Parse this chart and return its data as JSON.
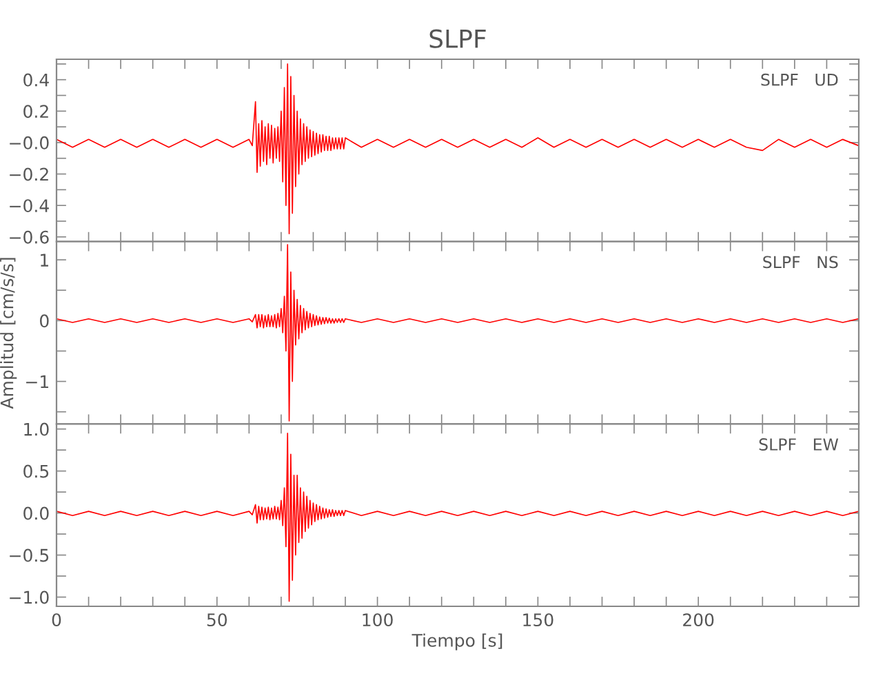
{
  "chart_data": [
    {
      "type": "line",
      "title": "SLPF",
      "annotations": [
        "SLPF   UD"
      ],
      "tick_labels": "y",
      "x": [
        0,
        5,
        10,
        15,
        20,
        25,
        30,
        35,
        40,
        45,
        50,
        55,
        60,
        61,
        62,
        62.5,
        63,
        63.5,
        64,
        64.5,
        65,
        65.5,
        66,
        66.5,
        67,
        67.5,
        68,
        68.5,
        69,
        69.5,
        70,
        70.5,
        71,
        71.5,
        72,
        72.5,
        73,
        73.5,
        74,
        74.5,
        75,
        75.5,
        76,
        76.5,
        77,
        77.5,
        78,
        78.5,
        79,
        79.5,
        80,
        80.5,
        81,
        81.5,
        82,
        82.5,
        83,
        83.5,
        84,
        84.5,
        85,
        85.5,
        86,
        86.5,
        87,
        87.5,
        88,
        88.5,
        89,
        89.5,
        90,
        95,
        100,
        105,
        110,
        115,
        120,
        125,
        130,
        135,
        140,
        145,
        150,
        155,
        160,
        165,
        170,
        175,
        180,
        185,
        190,
        195,
        200,
        205,
        210,
        215,
        220,
        225,
        230,
        235,
        240,
        245,
        250
      ],
      "series": [
        {
          "color": "#ff0000",
          "values": [
            0.02,
            -0.03,
            0.02,
            -0.03,
            0.02,
            -0.03,
            0.02,
            -0.03,
            0.02,
            -0.03,
            0.02,
            -0.03,
            0.02,
            -0.02,
            0.26,
            -0.19,
            0.12,
            -0.15,
            0.14,
            -0.12,
            0.1,
            -0.14,
            0.12,
            -0.1,
            0.11,
            -0.13,
            0.09,
            -0.1,
            0.1,
            -0.12,
            0.2,
            -0.25,
            0.35,
            -0.4,
            0.5,
            -0.58,
            0.42,
            -0.45,
            0.3,
            -0.28,
            0.2,
            -0.2,
            0.15,
            -0.14,
            0.12,
            -0.12,
            0.1,
            -0.1,
            0.08,
            -0.09,
            0.07,
            -0.08,
            0.06,
            -0.07,
            0.05,
            -0.06,
            0.05,
            -0.05,
            0.04,
            -0.05,
            0.04,
            -0.05,
            0.03,
            -0.04,
            0.03,
            -0.04,
            0.03,
            -0.04,
            0.03,
            -0.04,
            0.03,
            -0.03,
            0.02,
            -0.03,
            0.02,
            -0.03,
            0.02,
            -0.03,
            0.02,
            -0.03,
            0.02,
            -0.03,
            0.03,
            -0.03,
            0.02,
            -0.03,
            0.02,
            -0.03,
            0.02,
            -0.03,
            0.02,
            -0.03,
            0.02,
            -0.03,
            0.02,
            -0.03,
            -0.05,
            0.02,
            -0.03,
            0.02,
            -0.03,
            0.02,
            -0.02
          ]
        }
      ],
      "xlim": [
        0,
        250
      ],
      "ylim": [
        -0.63,
        0.53
      ],
      "xticks": [
        {
          "value": 0,
          "label": null
        },
        {
          "value": 10,
          "label": null
        },
        {
          "value": 20,
          "label": null
        },
        {
          "value": 30,
          "label": null
        },
        {
          "value": 40,
          "label": null
        },
        {
          "value": 50,
          "label": null
        },
        {
          "value": 60,
          "label": null
        },
        {
          "value": 70,
          "label": null
        },
        {
          "value": 80,
          "label": null
        },
        {
          "value": 90,
          "label": null
        },
        {
          "value": 100,
          "label": null
        },
        {
          "value": 110,
          "label": null
        },
        {
          "value": 120,
          "label": null
        },
        {
          "value": 130,
          "label": null
        },
        {
          "value": 140,
          "label": null
        },
        {
          "value": 150,
          "label": null
        },
        {
          "value": 160,
          "label": null
        },
        {
          "value": 170,
          "label": null
        },
        {
          "value": 180,
          "label": null
        },
        {
          "value": 190,
          "label": null
        },
        {
          "value": 200,
          "label": null
        },
        {
          "value": 210,
          "label": null
        },
        {
          "value": 220,
          "label": null
        },
        {
          "value": 230,
          "label": null
        },
        {
          "value": 240,
          "label": null
        }
      ],
      "yticks": [
        {
          "value": -0.6,
          "label": "−0.6"
        },
        {
          "value": -0.5,
          "label": null
        },
        {
          "value": -0.4,
          "label": "−0.4"
        },
        {
          "value": -0.3,
          "label": null
        },
        {
          "value": -0.2,
          "label": "−0.2"
        },
        {
          "value": -0.1,
          "label": null
        },
        {
          "value": 0,
          "label": "−0.0"
        },
        {
          "value": 0.1,
          "label": null
        },
        {
          "value": 0.2,
          "label": "0.2"
        },
        {
          "value": 0.3,
          "label": null
        },
        {
          "value": 0.4,
          "label": "0.4"
        },
        {
          "value": 0.5,
          "label": null
        }
      ]
    },
    {
      "type": "line",
      "ylabel": "Amplitud [cm/s/s]",
      "annotations": [
        "SLPF   NS"
      ],
      "tick_labels": "y",
      "x": [
        0,
        5,
        10,
        15,
        20,
        25,
        30,
        35,
        40,
        45,
        50,
        55,
        60,
        61,
        62,
        62.5,
        63,
        63.5,
        64,
        64.5,
        65,
        65.5,
        66,
        66.5,
        67,
        67.5,
        68,
        68.5,
        69,
        69.5,
        70,
        70.5,
        71,
        71.5,
        72,
        72.5,
        73,
        73.5,
        74,
        74.5,
        75,
        75.5,
        76,
        76.5,
        77,
        77.5,
        78,
        78.5,
        79,
        79.5,
        80,
        80.5,
        81,
        81.5,
        82,
        82.5,
        83,
        83.5,
        84,
        84.5,
        85,
        85.5,
        86,
        86.5,
        87,
        87.5,
        88,
        88.5,
        89,
        89.5,
        90,
        95,
        100,
        105,
        110,
        115,
        120,
        125,
        130,
        135,
        140,
        145,
        150,
        155,
        160,
        165,
        170,
        175,
        180,
        185,
        190,
        195,
        200,
        205,
        210,
        215,
        220,
        225,
        230,
        235,
        240,
        245,
        250
      ],
      "series": [
        {
          "color": "#ff0000",
          "values": [
            0.03,
            -0.03,
            0.03,
            -0.03,
            0.03,
            -0.03,
            0.03,
            -0.03,
            0.03,
            -0.03,
            0.03,
            -0.03,
            0.03,
            -0.02,
            0.1,
            -0.12,
            0.1,
            -0.1,
            0.1,
            -0.12,
            0.08,
            -0.1,
            0.1,
            -0.1,
            0.08,
            -0.1,
            0.1,
            -0.12,
            0.12,
            -0.1,
            0.2,
            -0.2,
            0.4,
            -0.5,
            1.25,
            -1.65,
            0.8,
            -1.0,
            0.5,
            -0.4,
            0.35,
            -0.3,
            0.25,
            -0.2,
            0.2,
            -0.15,
            0.15,
            -0.12,
            0.12,
            -0.1,
            0.1,
            -0.08,
            0.08,
            -0.07,
            0.06,
            -0.06,
            0.05,
            -0.05,
            0.05,
            -0.04,
            0.04,
            -0.04,
            0.03,
            -0.04,
            0.03,
            -0.03,
            0.03,
            -0.03,
            0.03,
            -0.03,
            0.03,
            -0.03,
            0.03,
            -0.03,
            0.03,
            -0.03,
            0.03,
            -0.03,
            0.03,
            -0.03,
            0.03,
            -0.03,
            0.03,
            -0.03,
            0.03,
            -0.03,
            0.03,
            -0.03,
            0.03,
            -0.03,
            0.03,
            -0.03,
            0.03,
            -0.03,
            0.03,
            -0.03,
            0.03,
            -0.03,
            0.03,
            -0.03,
            0.03,
            -0.03,
            0.03
          ]
        }
      ],
      "xlim": [
        0,
        250
      ],
      "ylim": [
        -1.7,
        1.3
      ],
      "xticks": [
        {
          "value": 0,
          "label": null
        },
        {
          "value": 10,
          "label": null
        },
        {
          "value": 20,
          "label": null
        },
        {
          "value": 30,
          "label": null
        },
        {
          "value": 40,
          "label": null
        },
        {
          "value": 50,
          "label": null
        },
        {
          "value": 60,
          "label": null
        },
        {
          "value": 70,
          "label": null
        },
        {
          "value": 80,
          "label": null
        },
        {
          "value": 90,
          "label": null
        },
        {
          "value": 100,
          "label": null
        },
        {
          "value": 110,
          "label": null
        },
        {
          "value": 120,
          "label": null
        },
        {
          "value": 130,
          "label": null
        },
        {
          "value": 140,
          "label": null
        },
        {
          "value": 150,
          "label": null
        },
        {
          "value": 160,
          "label": null
        },
        {
          "value": 170,
          "label": null
        },
        {
          "value": 180,
          "label": null
        },
        {
          "value": 190,
          "label": null
        },
        {
          "value": 200,
          "label": null
        },
        {
          "value": 210,
          "label": null
        },
        {
          "value": 220,
          "label": null
        },
        {
          "value": 230,
          "label": null
        },
        {
          "value": 240,
          "label": null
        }
      ],
      "yticks": [
        {
          "value": -1.5,
          "label": null
        },
        {
          "value": -1,
          "label": "−1"
        },
        {
          "value": -0.5,
          "label": null
        },
        {
          "value": 0,
          "label": "0"
        },
        {
          "value": 0.5,
          "label": null
        },
        {
          "value": 1,
          "label": "1"
        }
      ]
    },
    {
      "type": "line",
      "xlabel": "Tiempo [s]",
      "annotations": [
        "SLPF   EW"
      ],
      "x": [
        0,
        5,
        10,
        15,
        20,
        25,
        30,
        35,
        40,
        45,
        50,
        55,
        60,
        61,
        62,
        62.5,
        63,
        63.5,
        64,
        64.5,
        65,
        65.5,
        66,
        66.5,
        67,
        67.5,
        68,
        68.5,
        69,
        69.5,
        70,
        70.5,
        71,
        71.5,
        72,
        72.5,
        73,
        73.5,
        74,
        74.5,
        75,
        75.5,
        76,
        76.5,
        77,
        77.5,
        78,
        78.5,
        79,
        79.5,
        80,
        80.5,
        81,
        81.5,
        82,
        82.5,
        83,
        83.5,
        84,
        84.5,
        85,
        85.5,
        86,
        86.5,
        87,
        87.5,
        88,
        88.5,
        89,
        89.5,
        90,
        95,
        100,
        105,
        110,
        115,
        120,
        125,
        130,
        135,
        140,
        145,
        150,
        155,
        160,
        165,
        170,
        175,
        180,
        185,
        190,
        195,
        200,
        205,
        210,
        215,
        220,
        225,
        230,
        235,
        240,
        245,
        250
      ],
      "series": [
        {
          "color": "#ff0000",
          "values": [
            0.02,
            -0.03,
            0.02,
            -0.03,
            0.02,
            -0.03,
            0.02,
            -0.03,
            0.02,
            -0.03,
            0.02,
            -0.03,
            0.02,
            -0.02,
            0.1,
            -0.12,
            0.08,
            -0.08,
            0.07,
            -0.08,
            0.06,
            -0.07,
            0.07,
            -0.08,
            0.06,
            -0.07,
            0.08,
            -0.07,
            0.07,
            -0.08,
            0.15,
            -0.15,
            0.3,
            -0.4,
            0.95,
            -1.05,
            0.7,
            -0.8,
            0.45,
            -0.5,
            0.45,
            -0.35,
            0.3,
            -0.3,
            0.25,
            -0.22,
            0.2,
            -0.18,
            0.15,
            -0.14,
            0.12,
            -0.1,
            0.1,
            -0.08,
            0.08,
            -0.07,
            0.06,
            -0.06,
            0.05,
            -0.05,
            0.04,
            -0.04,
            0.04,
            -0.04,
            0.03,
            -0.03,
            0.03,
            -0.03,
            0.03,
            -0.03,
            0.03,
            -0.03,
            0.02,
            -0.03,
            0.02,
            -0.03,
            0.02,
            -0.03,
            0.02,
            -0.03,
            0.02,
            -0.03,
            0.02,
            -0.03,
            0.02,
            -0.03,
            0.02,
            -0.03,
            0.02,
            -0.03,
            0.02,
            -0.03,
            0.02,
            -0.03,
            0.02,
            -0.03,
            0.02,
            -0.03,
            0.02,
            -0.03,
            0.02,
            -0.03,
            0.02
          ]
        }
      ],
      "xlim": [
        0,
        250
      ],
      "ylim": [
        -1.11,
        1.06
      ],
      "xticks": [
        0,
        {
          "value": 10,
          "label": null
        },
        {
          "value": 20,
          "label": null
        },
        {
          "value": 30,
          "label": null
        },
        {
          "value": 40,
          "label": null
        },
        50,
        {
          "value": 60,
          "label": null
        },
        {
          "value": 70,
          "label": null
        },
        {
          "value": 80,
          "label": null
        },
        {
          "value": 90,
          "label": null
        },
        100,
        {
          "value": 110,
          "label": null
        },
        {
          "value": 120,
          "label": null
        },
        {
          "value": 130,
          "label": null
        },
        {
          "value": 140,
          "label": null
        },
        150,
        {
          "value": 160,
          "label": null
        },
        {
          "value": 170,
          "label": null
        },
        {
          "value": 180,
          "label": null
        },
        {
          "value": 190,
          "label": null
        },
        200,
        {
          "value": 210,
          "label": null
        },
        {
          "value": 220,
          "label": null
        },
        {
          "value": 230,
          "label": null
        },
        {
          "value": 240,
          "label": null
        }
      ],
      "yticks": [
        {
          "value": -1,
          "label": "−1.0"
        },
        {
          "value": -0.75,
          "label": null
        },
        {
          "value": -0.5,
          "label": "−0.5"
        },
        {
          "value": -0.25,
          "label": null
        },
        {
          "value": 0,
          "label": "0.0"
        },
        {
          "value": 0.25,
          "label": null
        },
        {
          "value": 0.5,
          "label": "0.5"
        },
        {
          "value": 0.75,
          "label": null
        },
        {
          "value": 1,
          "label": "1.0"
        }
      ]
    }
  ]
}
